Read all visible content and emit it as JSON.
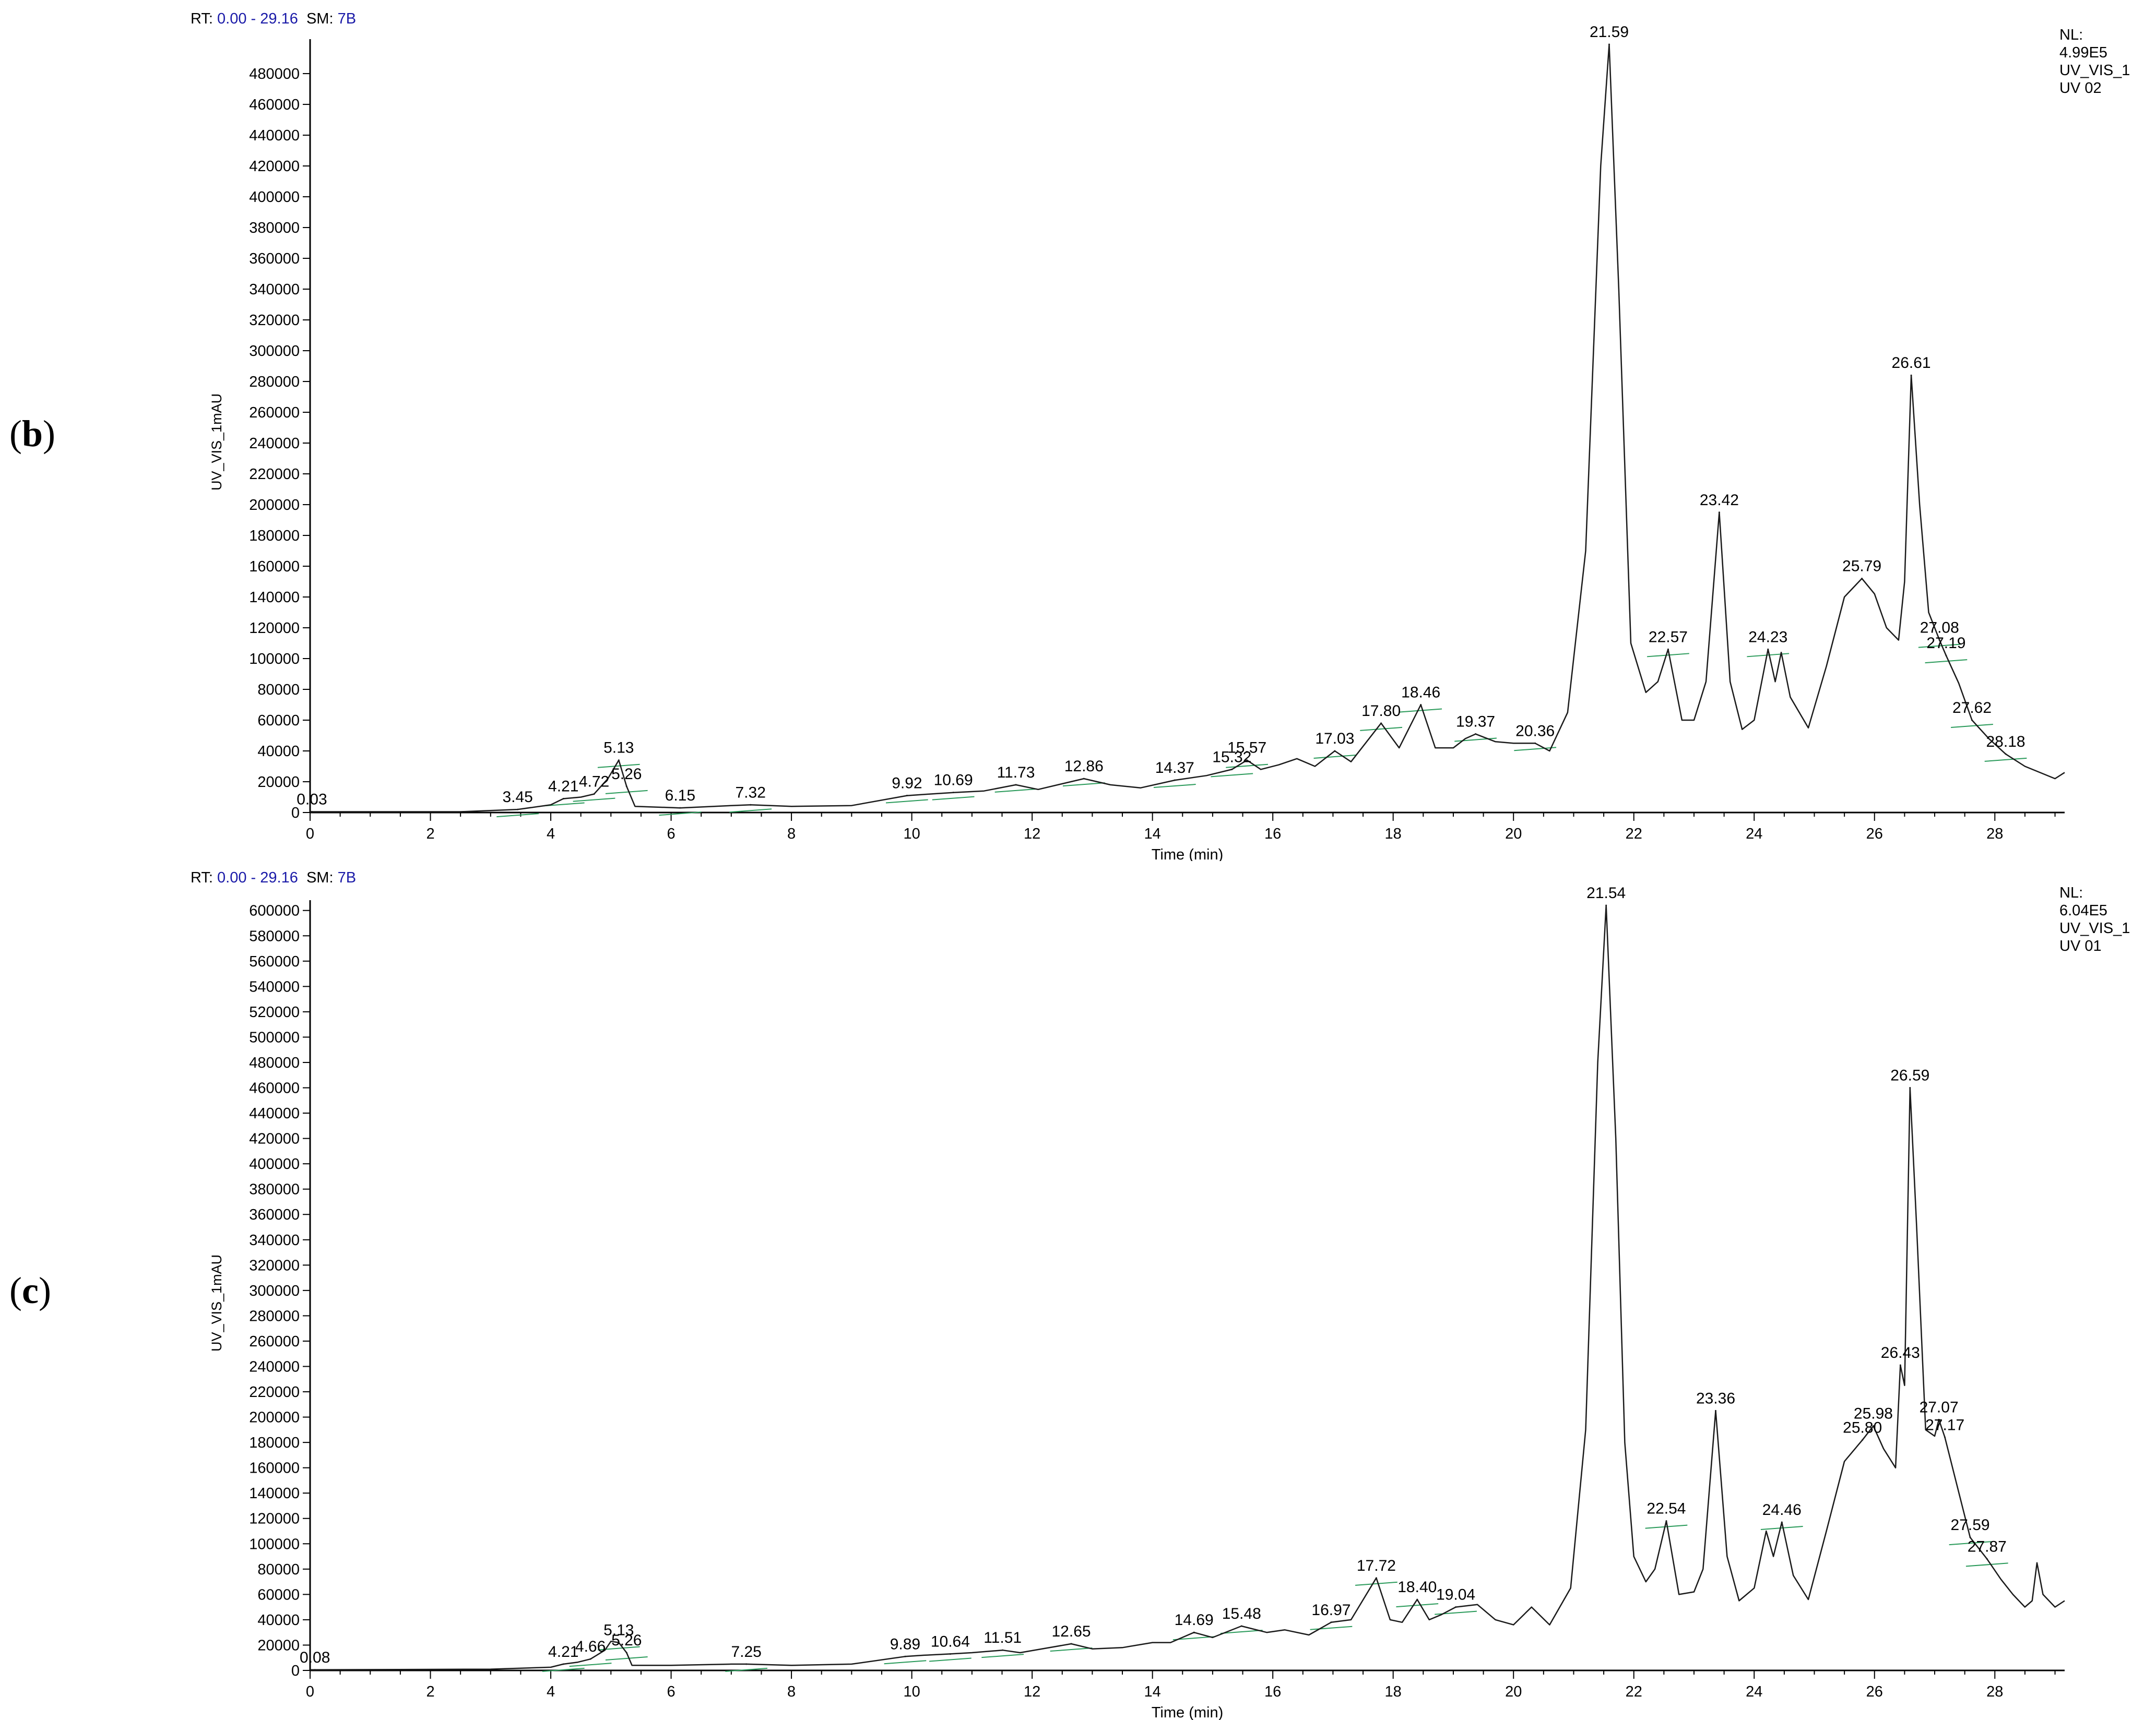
{
  "panels": [
    {
      "letter": "b",
      "rt_label": "RT:",
      "rt_range": "0.00 - 29.16",
      "sm_label": "SM:",
      "sm_value": "7B",
      "nl": [
        "NL:",
        "4.99E5",
        "UV_VIS_1",
        "UV 02"
      ]
    },
    {
      "letter": "c",
      "rt_label": "RT:",
      "rt_range": "0.00 - 29.16",
      "sm_label": "SM:",
      "sm_value": "7B",
      "nl": [
        "NL:",
        "6.04E5",
        "UV_VIS_1",
        "UV 01"
      ]
    }
  ],
  "chart_data": [
    {
      "type": "line",
      "xlabel": "Time (min)",
      "ylabel": "UV_VIS_1mAU",
      "xlim": [
        0,
        29.16
      ],
      "ylim": [
        0,
        499000
      ],
      "xticks": [
        0,
        2,
        4,
        6,
        8,
        10,
        12,
        14,
        16,
        18,
        20,
        22,
        24,
        26,
        28
      ],
      "yticks": [
        0,
        20000,
        40000,
        60000,
        80000,
        100000,
        120000,
        140000,
        160000,
        180000,
        200000,
        220000,
        240000,
        260000,
        280000,
        300000,
        320000,
        340000,
        360000,
        380000,
        400000,
        420000,
        440000,
        460000,
        480000
      ],
      "peaks": [
        {
          "label": "0.03",
          "x": 0.03,
          "y": 500
        },
        {
          "label": "3.45",
          "x": 3.45,
          "y": 2000
        },
        {
          "label": "4.21",
          "x": 4.21,
          "y": 9000
        },
        {
          "label": "4.72",
          "x": 4.72,
          "y": 12000
        },
        {
          "label": "5.13",
          "x": 5.13,
          "y": 34000
        },
        {
          "label": "5.26",
          "x": 5.26,
          "y": 17000
        },
        {
          "label": "6.15",
          "x": 6.15,
          "y": 3000
        },
        {
          "label": "7.32",
          "x": 7.32,
          "y": 5000
        },
        {
          "label": "9.92",
          "x": 9.92,
          "y": 11000
        },
        {
          "label": "10.69",
          "x": 10.69,
          "y": 13000
        },
        {
          "label": "11.73",
          "x": 11.73,
          "y": 18000
        },
        {
          "label": "12.86",
          "x": 12.86,
          "y": 22000
        },
        {
          "label": "14.37",
          "x": 14.37,
          "y": 21000
        },
        {
          "label": "15.32",
          "x": 15.32,
          "y": 28000
        },
        {
          "label": "15.57",
          "x": 15.57,
          "y": 34000
        },
        {
          "label": "17.03",
          "x": 17.03,
          "y": 40000
        },
        {
          "label": "17.80",
          "x": 17.8,
          "y": 58000
        },
        {
          "label": "18.46",
          "x": 18.46,
          "y": 70000
        },
        {
          "label": "19.37",
          "x": 19.37,
          "y": 51000
        },
        {
          "label": "20.36",
          "x": 20.36,
          "y": 45000
        },
        {
          "label": "21.59",
          "x": 21.59,
          "y": 499000
        },
        {
          "label": "22.57",
          "x": 22.57,
          "y": 106000
        },
        {
          "label": "23.42",
          "x": 23.42,
          "y": 195000
        },
        {
          "label": "24.23",
          "x": 24.23,
          "y": 106000
        },
        {
          "label": "25.79",
          "x": 25.79,
          "y": 152000
        },
        {
          "label": "26.61",
          "x": 26.61,
          "y": 284000
        },
        {
          "label": "27.08",
          "x": 27.08,
          "y": 112000
        },
        {
          "label": "27.19",
          "x": 27.19,
          "y": 102000
        },
        {
          "label": "27.62",
          "x": 27.62,
          "y": 60000
        },
        {
          "label": "28.18",
          "x": 28.18,
          "y": 38000
        }
      ],
      "trace": [
        [
          0,
          500
        ],
        [
          2.5,
          500
        ],
        [
          3.45,
          2000
        ],
        [
          4.0,
          5000
        ],
        [
          4.21,
          9000
        ],
        [
          4.5,
          10000
        ],
        [
          4.72,
          12000
        ],
        [
          4.95,
          22000
        ],
        [
          5.13,
          34000
        ],
        [
          5.26,
          17000
        ],
        [
          5.4,
          4000
        ],
        [
          6.15,
          3000
        ],
        [
          7.0,
          4500
        ],
        [
          7.32,
          5000
        ],
        [
          8.0,
          4000
        ],
        [
          9.0,
          4500
        ],
        [
          9.92,
          11000
        ],
        [
          10.3,
          12000
        ],
        [
          10.69,
          13000
        ],
        [
          11.2,
          14000
        ],
        [
          11.73,
          18000
        ],
        [
          12.1,
          15000
        ],
        [
          12.86,
          22000
        ],
        [
          13.3,
          18000
        ],
        [
          13.8,
          16000
        ],
        [
          14.37,
          21000
        ],
        [
          14.9,
          24000
        ],
        [
          15.32,
          28000
        ],
        [
          15.57,
          34000
        ],
        [
          15.8,
          28000
        ],
        [
          16.1,
          31000
        ],
        [
          16.4,
          35000
        ],
        [
          16.7,
          30000
        ],
        [
          17.03,
          40000
        ],
        [
          17.3,
          33000
        ],
        [
          17.8,
          58000
        ],
        [
          18.1,
          42000
        ],
        [
          18.46,
          70000
        ],
        [
          18.7,
          42000
        ],
        [
          19.0,
          42000
        ],
        [
          19.2,
          48000
        ],
        [
          19.37,
          51000
        ],
        [
          19.7,
          46000
        ],
        [
          20.0,
          45000
        ],
        [
          20.36,
          45000
        ],
        [
          20.6,
          40000
        ],
        [
          20.9,
          65000
        ],
        [
          21.2,
          170000
        ],
        [
          21.45,
          420000
        ],
        [
          21.59,
          499000
        ],
        [
          21.75,
          340000
        ],
        [
          21.95,
          110000
        ],
        [
          22.2,
          78000
        ],
        [
          22.4,
          85000
        ],
        [
          22.57,
          106000
        ],
        [
          22.8,
          60000
        ],
        [
          23.0,
          60000
        ],
        [
          23.2,
          85000
        ],
        [
          23.42,
          195000
        ],
        [
          23.6,
          85000
        ],
        [
          23.8,
          54000
        ],
        [
          24.0,
          60000
        ],
        [
          24.23,
          106000
        ],
        [
          24.35,
          85000
        ],
        [
          24.45,
          104000
        ],
        [
          24.6,
          75000
        ],
        [
          24.9,
          55000
        ],
        [
          25.2,
          95000
        ],
        [
          25.5,
          140000
        ],
        [
          25.79,
          152000
        ],
        [
          26.0,
          142000
        ],
        [
          26.2,
          120000
        ],
        [
          26.4,
          112000
        ],
        [
          26.5,
          150000
        ],
        [
          26.61,
          284000
        ],
        [
          26.75,
          200000
        ],
        [
          26.9,
          130000
        ],
        [
          27.08,
          112000
        ],
        [
          27.19,
          102000
        ],
        [
          27.4,
          84000
        ],
        [
          27.62,
          60000
        ],
        [
          27.9,
          48000
        ],
        [
          28.18,
          38000
        ],
        [
          28.5,
          30000
        ],
        [
          29.0,
          22000
        ],
        [
          29.16,
          26000
        ]
      ]
    },
    {
      "type": "line",
      "xlabel": "Time (min)",
      "ylabel": "UV_VIS_1mAU",
      "xlim": [
        0,
        29.16
      ],
      "ylim": [
        0,
        604000
      ],
      "xticks": [
        0,
        2,
        4,
        6,
        8,
        10,
        12,
        14,
        16,
        18,
        20,
        22,
        24,
        26,
        28
      ],
      "yticks": [
        0,
        20000,
        40000,
        60000,
        80000,
        100000,
        120000,
        140000,
        160000,
        180000,
        200000,
        220000,
        240000,
        260000,
        280000,
        300000,
        320000,
        340000,
        360000,
        380000,
        400000,
        420000,
        440000,
        460000,
        480000,
        500000,
        520000,
        540000,
        560000,
        580000,
        600000
      ],
      "peaks": [
        {
          "label": "0.08",
          "x": 0.08,
          "y": 500
        },
        {
          "label": "4.21",
          "x": 4.21,
          "y": 5000
        },
        {
          "label": "4.66",
          "x": 4.66,
          "y": 9000
        },
        {
          "label": "5.13",
          "x": 5.13,
          "y": 22000
        },
        {
          "label": "5.26",
          "x": 5.26,
          "y": 14000
        },
        {
          "label": "7.25",
          "x": 7.25,
          "y": 5000
        },
        {
          "label": "9.89",
          "x": 9.89,
          "y": 11000
        },
        {
          "label": "10.64",
          "x": 10.64,
          "y": 13000
        },
        {
          "label": "11.51",
          "x": 11.51,
          "y": 16000
        },
        {
          "label": "12.65",
          "x": 12.65,
          "y": 21000
        },
        {
          "label": "14.69",
          "x": 14.69,
          "y": 30000
        },
        {
          "label": "15.48",
          "x": 15.48,
          "y": 35000
        },
        {
          "label": "16.97",
          "x": 16.97,
          "y": 38000
        },
        {
          "label": "17.72",
          "x": 17.72,
          "y": 73000
        },
        {
          "label": "18.40",
          "x": 18.4,
          "y": 56000
        },
        {
          "label": "19.04",
          "x": 19.04,
          "y": 50000
        },
        {
          "label": "21.54",
          "x": 21.54,
          "y": 604000
        },
        {
          "label": "22.54",
          "x": 22.54,
          "y": 118000
        },
        {
          "label": "23.36",
          "x": 23.36,
          "y": 205000
        },
        {
          "label": "24.46",
          "x": 24.46,
          "y": 117000
        },
        {
          "label": "25.80",
          "x": 25.8,
          "y": 182000
        },
        {
          "label": "25.98",
          "x": 25.98,
          "y": 193000
        },
        {
          "label": "26.43",
          "x": 26.43,
          "y": 241000
        },
        {
          "label": "26.59",
          "x": 26.59,
          "y": 460000
        },
        {
          "label": "27.07",
          "x": 27.07,
          "y": 198000
        },
        {
          "label": "27.17",
          "x": 27.17,
          "y": 184000
        },
        {
          "label": "27.59",
          "x": 27.59,
          "y": 105000
        },
        {
          "label": "27.87",
          "x": 27.87,
          "y": 88000
        }
      ],
      "trace": [
        [
          0,
          500
        ],
        [
          3.0,
          1000
        ],
        [
          4.0,
          2500
        ],
        [
          4.21,
          5000
        ],
        [
          4.45,
          6500
        ],
        [
          4.66,
          9000
        ],
        [
          4.9,
          16000
        ],
        [
          5.0,
          23000
        ],
        [
          5.13,
          22000
        ],
        [
          5.26,
          14000
        ],
        [
          5.35,
          4000
        ],
        [
          6.0,
          4000
        ],
        [
          7.0,
          5000
        ],
        [
          7.25,
          5000
        ],
        [
          8.0,
          4000
        ],
        [
          9.0,
          5000
        ],
        [
          9.89,
          11000
        ],
        [
          10.2,
          12000
        ],
        [
          10.64,
          13000
        ],
        [
          11.0,
          14000
        ],
        [
          11.51,
          16000
        ],
        [
          11.8,
          14000
        ],
        [
          12.65,
          21000
        ],
        [
          13.0,
          17000
        ],
        [
          13.5,
          18000
        ],
        [
          14.0,
          22000
        ],
        [
          14.3,
          22000
        ],
        [
          14.69,
          30000
        ],
        [
          15.0,
          26000
        ],
        [
          15.48,
          35000
        ],
        [
          15.9,
          30000
        ],
        [
          16.2,
          32000
        ],
        [
          16.6,
          28000
        ],
        [
          16.97,
          38000
        ],
        [
          17.3,
          40000
        ],
        [
          17.72,
          73000
        ],
        [
          17.95,
          40000
        ],
        [
          18.15,
          38000
        ],
        [
          18.4,
          56000
        ],
        [
          18.6,
          40000
        ],
        [
          18.8,
          44000
        ],
        [
          19.04,
          50000
        ],
        [
          19.4,
          52000
        ],
        [
          19.7,
          40000
        ],
        [
          20.0,
          36000
        ],
        [
          20.3,
          50000
        ],
        [
          20.6,
          36000
        ],
        [
          20.95,
          65000
        ],
        [
          21.2,
          190000
        ],
        [
          21.4,
          480000
        ],
        [
          21.54,
          604000
        ],
        [
          21.7,
          420000
        ],
        [
          21.85,
          180000
        ],
        [
          22.0,
          90000
        ],
        [
          22.2,
          70000
        ],
        [
          22.35,
          80000
        ],
        [
          22.54,
          118000
        ],
        [
          22.75,
          60000
        ],
        [
          23.0,
          62000
        ],
        [
          23.15,
          80000
        ],
        [
          23.36,
          205000
        ],
        [
          23.55,
          90000
        ],
        [
          23.75,
          55000
        ],
        [
          24.0,
          65000
        ],
        [
          24.2,
          110000
        ],
        [
          24.32,
          90000
        ],
        [
          24.46,
          117000
        ],
        [
          24.65,
          75000
        ],
        [
          24.9,
          56000
        ],
        [
          25.2,
          110000
        ],
        [
          25.5,
          165000
        ],
        [
          25.8,
          182000
        ],
        [
          25.98,
          193000
        ],
        [
          26.15,
          175000
        ],
        [
          26.35,
          160000
        ],
        [
          26.43,
          241000
        ],
        [
          26.5,
          225000
        ],
        [
          26.59,
          460000
        ],
        [
          26.7,
          350000
        ],
        [
          26.85,
          190000
        ],
        [
          27.0,
          185000
        ],
        [
          27.07,
          198000
        ],
        [
          27.17,
          184000
        ],
        [
          27.35,
          150000
        ],
        [
          27.59,
          105000
        ],
        [
          27.87,
          88000
        ],
        [
          28.1,
          72000
        ],
        [
          28.3,
          60000
        ],
        [
          28.5,
          50000
        ],
        [
          28.62,
          55000
        ],
        [
          28.7,
          85000
        ],
        [
          28.8,
          60000
        ],
        [
          29.0,
          50000
        ],
        [
          29.16,
          55000
        ]
      ]
    }
  ]
}
